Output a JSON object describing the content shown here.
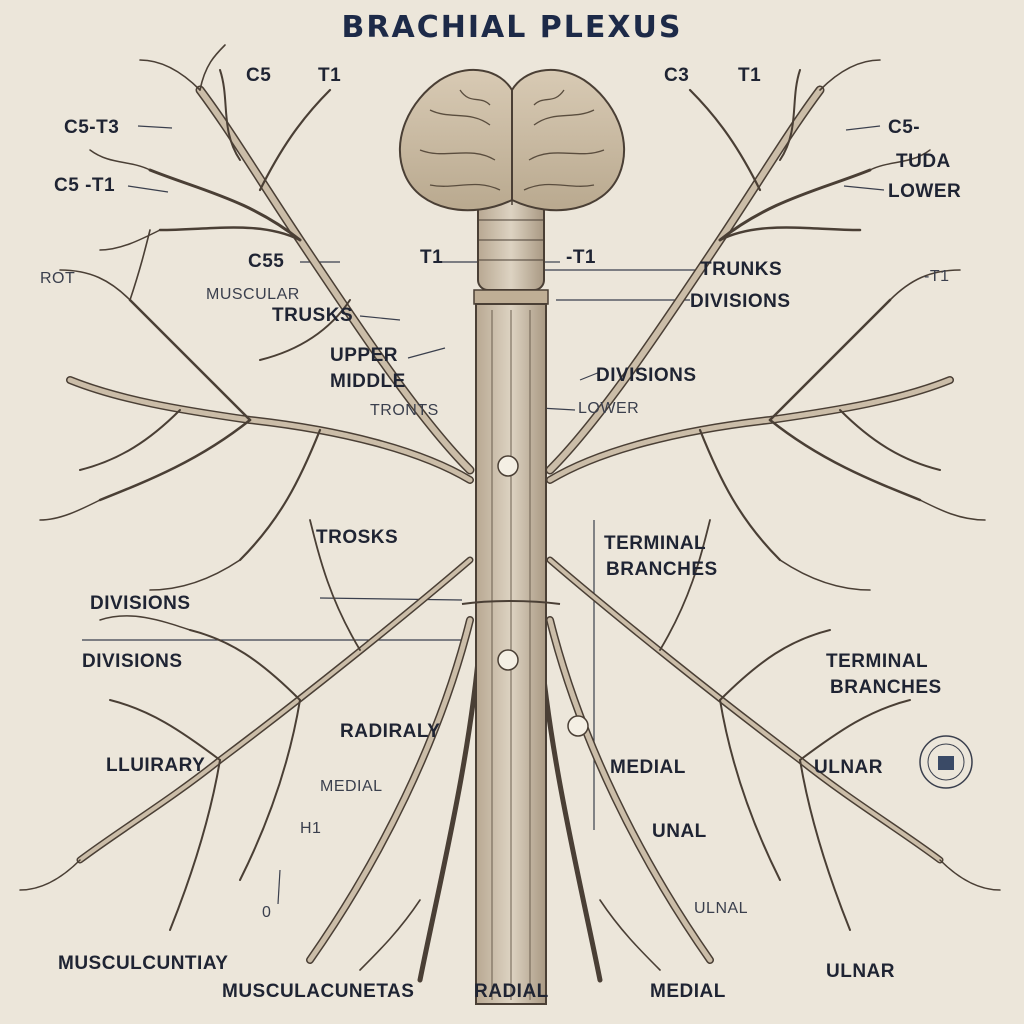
{
  "title": "BRACHIAL PLEXUS",
  "colors": {
    "background": "#ece6da",
    "nerve_fill": "#c9bba7",
    "nerve_stroke": "#4a3f35",
    "text": "#1f2433",
    "title": "#1d2a48"
  },
  "icons": [
    "brain-icon",
    "spinal-cord-icon",
    "seal-icon"
  ],
  "labels": {
    "top_c5": "C5",
    "top_t1_left": "T1",
    "top_c3": "C3",
    "top_t1_right": "T1",
    "c5_t3": "C5-T3",
    "c5_t1": "C5 -T1",
    "right_c5": "C5-",
    "right_tuda": "TUDA",
    "right_lower": "LOWER",
    "c55": "C55",
    "t1_mid": "T1",
    "t1_dash": "-T1",
    "far_left_rot": "ROT",
    "muscular": "MUSCULAR",
    "trusks": "TRUSKS",
    "upper": "UPPER",
    "middle": "MIDDLE",
    "fronts": "TRONTS",
    "trunks_r": "TRUNKS",
    "divisions_r1": "DIVISIONS",
    "divisions_r2": "DIVISIONS",
    "lower_r": "LOWER",
    "far_right_t1": "-T1",
    "trosks": "TROSKS",
    "terminal_center": "TERMINAL",
    "branches_center": "BRANCHES",
    "divisions_l1": "DIVISIONS",
    "divisions_l2": "DIVISIONS",
    "terminal_right": "TERMINAL",
    "branches_right": "BRANCHES",
    "radiraly": "RADIRALY",
    "lluirary": "LLUIRARY",
    "medial_l": "MEDIAL",
    "medial_c": "MEDIAL",
    "ulnar_r1": "ULNAR",
    "h1": "H1",
    "unal": "UNAL",
    "ulnal": "ULNAL",
    "zero": "0",
    "musculcuntary": "MUSCULCUNTIAY",
    "ulnar_r2": "ULNAR",
    "musculacun": "MUSCULACUNETAS",
    "radial": "RADIAL",
    "medial_b": "MEDIAL"
  }
}
